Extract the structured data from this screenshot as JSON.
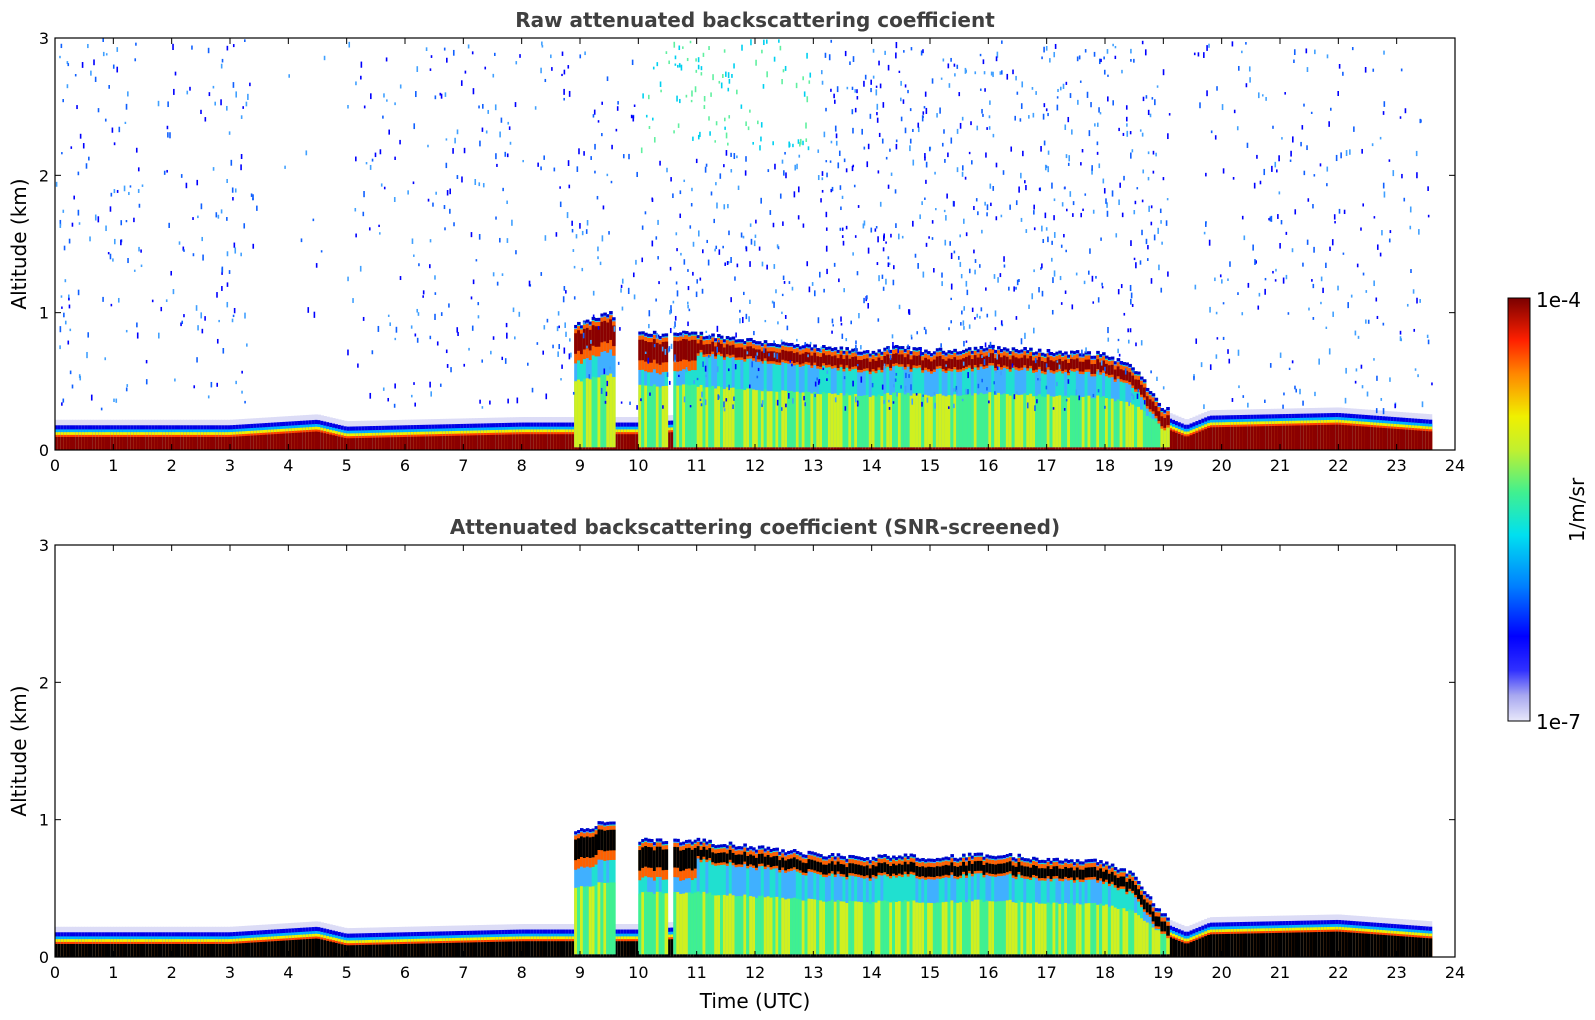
{
  "chart_data": [
    {
      "type": "heatmap",
      "title": "Raw attenuated backscattering coefficient",
      "xlabel": "",
      "ylabel": "Altitude (km)",
      "xlim": [
        0,
        24
      ],
      "ylim": [
        0,
        3
      ],
      "xticks": [
        "0",
        "1",
        "2",
        "3",
        "4",
        "5",
        "6",
        "7",
        "8",
        "9",
        "10",
        "11",
        "12",
        "13",
        "14",
        "15",
        "16",
        "17",
        "18",
        "19",
        "20",
        "21",
        "22",
        "23",
        "24"
      ],
      "yticks": [
        "0",
        "1",
        "2",
        "3"
      ],
      "features": {
        "boundary_layer_top_km": [
          [
            0,
            0.18
          ],
          [
            3,
            0.18
          ],
          [
            4.5,
            0.22
          ],
          [
            5,
            0.17
          ],
          [
            8,
            0.2
          ],
          [
            9,
            0.2
          ],
          [
            10,
            0.2
          ],
          [
            12,
            0.25
          ],
          [
            19,
            0.25
          ],
          [
            19.4,
            0.18
          ],
          [
            19.8,
            0.25
          ],
          [
            22,
            0.27
          ],
          [
            23.6,
            0.22
          ]
        ],
        "cloud_top_km": [
          [
            8.9,
            0.9
          ],
          [
            9.5,
            1.0
          ],
          [
            10,
            0.85
          ],
          [
            11,
            0.85
          ],
          [
            12,
            0.8
          ],
          [
            13,
            0.75
          ],
          [
            14,
            0.72
          ],
          [
            14.5,
            0.75
          ],
          [
            15,
            0.72
          ],
          [
            16,
            0.75
          ],
          [
            17,
            0.72
          ],
          [
            18,
            0.7
          ],
          [
            18.5,
            0.6
          ],
          [
            19,
            0.3
          ]
        ],
        "data_end_hour": 23.6,
        "noise": "dense scattered noise above 1 km"
      }
    },
    {
      "type": "heatmap",
      "title": "Attenuated backscattering coefficient (SNR-screened)",
      "xlabel": "Time (UTC)",
      "ylabel": "Altitude (km)",
      "xlim": [
        0,
        24
      ],
      "ylim": [
        0,
        3
      ],
      "xticks": [
        "0",
        "1",
        "2",
        "3",
        "4",
        "5",
        "6",
        "7",
        "8",
        "9",
        "10",
        "11",
        "12",
        "13",
        "14",
        "15",
        "16",
        "17",
        "18",
        "19",
        "20",
        "21",
        "22",
        "23",
        "24"
      ],
      "yticks": [
        "0",
        "1",
        "2",
        "3"
      ],
      "features": {
        "boundary_layer_top_km": [
          [
            0,
            0.18
          ],
          [
            3,
            0.18
          ],
          [
            4.5,
            0.22
          ],
          [
            5,
            0.17
          ],
          [
            8,
            0.2
          ],
          [
            9,
            0.2
          ],
          [
            10,
            0.2
          ],
          [
            12,
            0.25
          ],
          [
            19,
            0.25
          ],
          [
            19.4,
            0.18
          ],
          [
            19.8,
            0.25
          ],
          [
            22,
            0.27
          ],
          [
            23.6,
            0.22
          ]
        ],
        "cloud_top_km": [
          [
            8.9,
            0.9
          ],
          [
            9.5,
            1.0
          ],
          [
            10,
            0.85
          ],
          [
            11,
            0.85
          ],
          [
            12,
            0.8
          ],
          [
            13,
            0.75
          ],
          [
            14,
            0.72
          ],
          [
            14.5,
            0.75
          ],
          [
            15,
            0.72
          ],
          [
            16,
            0.75
          ],
          [
            17,
            0.72
          ],
          [
            18,
            0.7
          ],
          [
            18.5,
            0.6
          ],
          [
            19,
            0.3
          ]
        ],
        "data_end_hour": 23.6,
        "saturated_core": "black"
      }
    }
  ],
  "colorbar": {
    "label": "1/m/sr",
    "max_label": "1e-4",
    "min_label": "1e-7",
    "scale": "log",
    "range": [
      1e-07,
      0.0001
    ],
    "colors": [
      "#e8e8fa",
      "#b4b4f0",
      "#7070f0",
      "#0000ff",
      "#0066ff",
      "#00bbff",
      "#00f0e0",
      "#40f090",
      "#b0f040",
      "#f0f000",
      "#ff9900",
      "#ff3300",
      "#cc0000",
      "#7a0000"
    ]
  }
}
